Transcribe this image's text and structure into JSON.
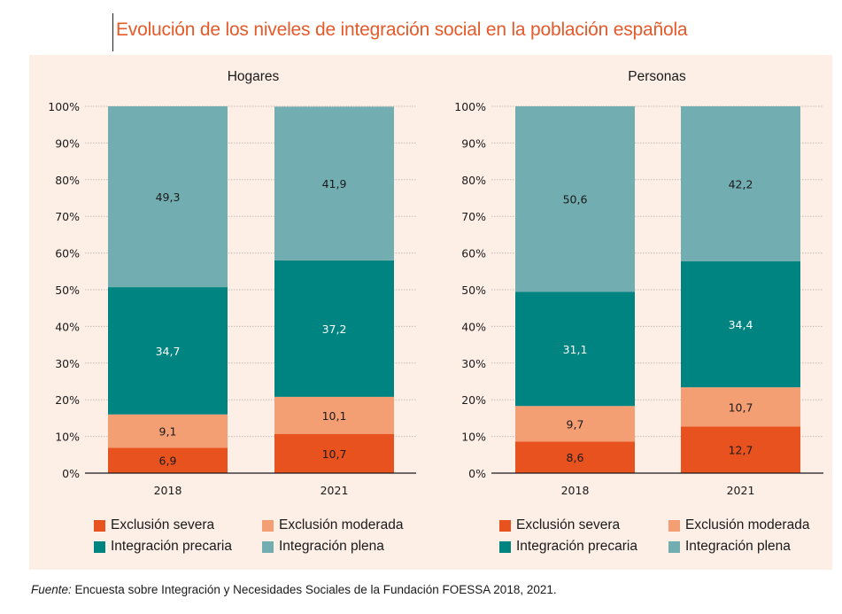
{
  "title": "Evolución de los niveles de integración social en la población española",
  "colors": {
    "exclusion_severa": "#e8521f",
    "exclusion_moderada": "#f49e74",
    "integracion_precaria": "#008481",
    "integracion_plena": "#72adb1",
    "panel_bg": "#fdeee6",
    "title": "#e55a2a"
  },
  "legend": [
    {
      "key": "exclusion_severa",
      "label": "Exclusión severa"
    },
    {
      "key": "exclusion_moderada",
      "label": "Exclusión moderada"
    },
    {
      "key": "integracion_precaria",
      "label": "Integración precaria"
    },
    {
      "key": "integracion_plena",
      "label": "Integración plena"
    }
  ],
  "footnote": {
    "prefix": "Fuente:",
    "text": " Encuesta sobre Integración y Necesidades Sociales de la Fundación FOESSA 2018, 2021."
  },
  "chart_data": [
    {
      "type": "bar",
      "stacked": true,
      "title": "Hogares",
      "categories": [
        "2018",
        "2021"
      ],
      "series": [
        {
          "name": "Exclusión severa",
          "key": "exclusion_severa",
          "values": [
            6.9,
            10.7
          ],
          "labels": [
            "6,9",
            "10,7"
          ]
        },
        {
          "name": "Exclusión moderada",
          "key": "exclusion_moderada",
          "values": [
            9.1,
            10.1
          ],
          "labels": [
            "9,1",
            "10,1"
          ]
        },
        {
          "name": "Integración precaria",
          "key": "integracion_precaria",
          "values": [
            34.7,
            37.2
          ],
          "labels": [
            "34,7",
            "37,2"
          ]
        },
        {
          "name": "Integración plena",
          "key": "integracion_plena",
          "values": [
            49.3,
            41.9
          ],
          "labels": [
            "49,3",
            "41,9"
          ]
        }
      ],
      "ylim": [
        0,
        100
      ],
      "yticks": [
        "0%",
        "10%",
        "20%",
        "30%",
        "40%",
        "50%",
        "60%",
        "70%",
        "80%",
        "90%",
        "100%"
      ],
      "xlabel": "",
      "ylabel": "",
      "grid": true,
      "legend": "bottom"
    },
    {
      "type": "bar",
      "stacked": true,
      "title": "Personas",
      "categories": [
        "2018",
        "2021"
      ],
      "series": [
        {
          "name": "Exclusión severa",
          "key": "exclusion_severa",
          "values": [
            8.6,
            12.7
          ],
          "labels": [
            "8,6",
            "12,7"
          ]
        },
        {
          "name": "Exclusión moderada",
          "key": "exclusion_moderada",
          "values": [
            9.7,
            10.7
          ],
          "labels": [
            "9,7",
            "10,7"
          ]
        },
        {
          "name": "Integración precaria",
          "key": "integracion_precaria",
          "values": [
            31.1,
            34.4
          ],
          "labels": [
            "31,1",
            "34,4"
          ]
        },
        {
          "name": "Integración plena",
          "key": "integracion_plena",
          "values": [
            50.6,
            42.2
          ],
          "labels": [
            "50,6",
            "42,2"
          ]
        }
      ],
      "ylim": [
        0,
        100
      ],
      "yticks": [
        "0%",
        "10%",
        "20%",
        "30%",
        "40%",
        "50%",
        "60%",
        "70%",
        "80%",
        "90%",
        "100%"
      ],
      "xlabel": "",
      "ylabel": "",
      "grid": true,
      "legend": "bottom"
    }
  ]
}
